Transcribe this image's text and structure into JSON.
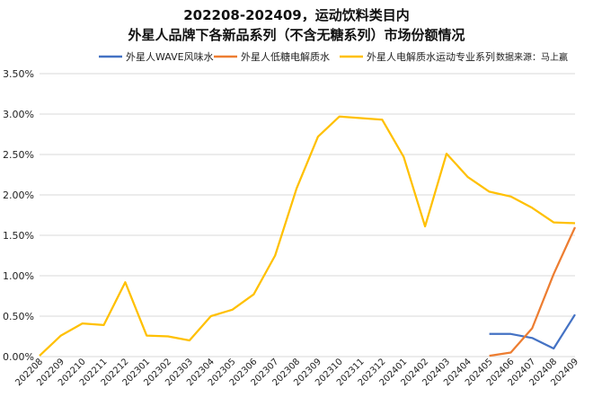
{
  "chart_data": {
    "type": "line",
    "title": "202208-202409，运动饮料类目内",
    "subtitle": "外星人品牌下各新品系列（不含无糖系列）市场份额情况",
    "source_note": "数据来源：马上赢",
    "categories": [
      "202208",
      "202209",
      "202210",
      "202211",
      "202212",
      "202301",
      "202302",
      "202303",
      "202304",
      "202305",
      "202306",
      "202307",
      "202308",
      "202309",
      "202310",
      "202311",
      "202312",
      "202401",
      "202402",
      "202403",
      "202404",
      "202405",
      "202406",
      "202407",
      "202408",
      "202409"
    ],
    "y_ticks": [
      "0.00%",
      "0.50%",
      "1.00%",
      "1.50%",
      "2.00%",
      "2.50%",
      "3.00%",
      "3.50%"
    ],
    "ylim": [
      0,
      3.5
    ],
    "grid": true,
    "legend_position": "top",
    "series": [
      {
        "name": "外星人WAVE风味水",
        "color": "#4472c4",
        "values": [
          null,
          null,
          null,
          null,
          null,
          null,
          null,
          null,
          null,
          null,
          null,
          null,
          null,
          null,
          null,
          null,
          null,
          null,
          null,
          null,
          null,
          0.28,
          0.28,
          0.23,
          0.1,
          0.52
        ]
      },
      {
        "name": "外星人低糖电解质水",
        "color": "#ed7d31",
        "values": [
          null,
          null,
          null,
          null,
          null,
          null,
          null,
          null,
          null,
          null,
          null,
          null,
          null,
          null,
          null,
          null,
          null,
          null,
          null,
          null,
          null,
          0.01,
          0.05,
          0.35,
          1.02,
          1.6
        ]
      },
      {
        "name": "外星人电解质水运动专业系列",
        "color": "#ffc000",
        "values": [
          0.01,
          0.26,
          0.41,
          0.39,
          0.92,
          0.26,
          0.25,
          0.2,
          0.5,
          0.58,
          0.77,
          1.25,
          2.08,
          2.72,
          2.97,
          2.95,
          2.93,
          2.47,
          1.61,
          2.51,
          2.22,
          2.04,
          1.98,
          1.84,
          1.66,
          1.65
        ]
      }
    ]
  }
}
